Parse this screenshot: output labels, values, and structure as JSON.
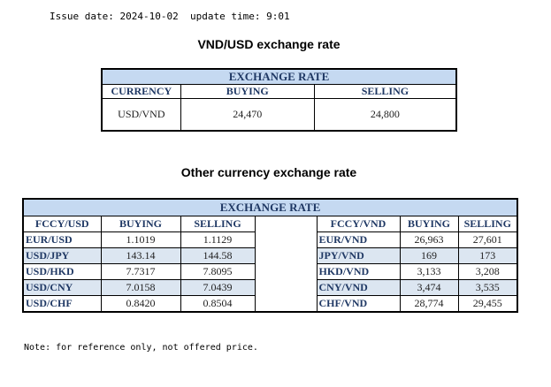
{
  "meta": {
    "issue_date": "Issue date: 2024-10-02",
    "update_time": "update time: 9:01"
  },
  "section1": {
    "title": "VND/USD exchange rate",
    "band": "EXCHANGE RATE",
    "headers": [
      "CURRENCY",
      "BUYING",
      "SELLING"
    ],
    "row": [
      "USD/VND",
      "24,470",
      "24,800"
    ]
  },
  "section2": {
    "title": "Other currency exchange rate",
    "band": "EXCHANGE  RATE",
    "headers_left": [
      "FCCY/USD",
      "BUYING",
      "SELLING"
    ],
    "headers_right": [
      "FCCY/VND",
      "BUYING",
      "SELLING"
    ],
    "rows": [
      {
        "l_pair": "EUR/USD",
        "l_buy": "1.1019",
        "l_sell": "1.1129",
        "r_pair": "EUR/VND",
        "r_buy": "26,963",
        "r_sell": "27,601"
      },
      {
        "l_pair": "USD/JPY",
        "l_buy": "143.14",
        "l_sell": "144.58",
        "r_pair": "JPY/VND",
        "r_buy": "169",
        "r_sell": "173"
      },
      {
        "l_pair": "USD/HKD",
        "l_buy": "7.7317",
        "l_sell": "7.8095",
        "r_pair": "HKD/VND",
        "r_buy": "3,133",
        "r_sell": "3,208"
      },
      {
        "l_pair": "USD/CNY",
        "l_buy": "7.0158",
        "l_sell": "7.0439",
        "r_pair": "CNY/VND",
        "r_buy": "3,474",
        "r_sell": "3,535"
      },
      {
        "l_pair": "USD/CHF",
        "l_buy": "0.8420",
        "l_sell": "0.8504",
        "r_pair": "CHF/VND",
        "r_buy": "28,774",
        "r_sell": "29,455"
      }
    ]
  },
  "note": "Note: for reference only, not offered price.",
  "colors": {
    "band": "#c5d9f1",
    "header_text": "#1f3864",
    "shade": "#dce6f1"
  }
}
